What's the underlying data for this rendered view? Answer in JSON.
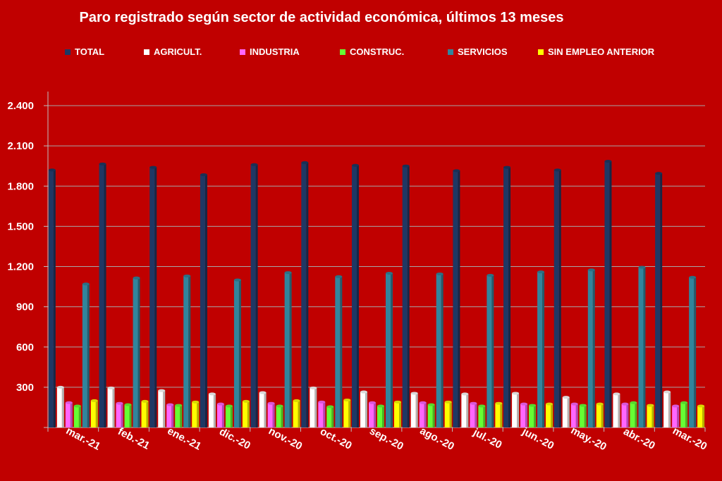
{
  "chart_data": {
    "type": "bar",
    "title": "Paro registrado según sector de actividad económica, últimos 13 meses",
    "xlabel": "",
    "ylabel": "",
    "ylim": [
      0,
      2400
    ],
    "yticks": [
      0,
      300,
      600,
      900,
      1200,
      1500,
      1800,
      2100,
      2400
    ],
    "ytick_labels": [
      "",
      "300",
      "600",
      "900",
      "1.200",
      "1.500",
      "1.800",
      "2.100",
      "2.400"
    ],
    "grid": true,
    "legend_position": "top",
    "categories": [
      "mar.-21",
      "feb.-21",
      "ene.-21",
      "dic.-20",
      "nov.-20",
      "oct.-20",
      "sep.-20",
      "ago.-20",
      "jul.-20",
      "jun.-20",
      "may.-20",
      "abr.-20",
      "mar.-20"
    ],
    "series": [
      {
        "name": "TOTAL",
        "color": "#1f3864",
        "values": [
          1920,
          1965,
          1940,
          1885,
          1960,
          1975,
          1955,
          1950,
          1915,
          1940,
          1920,
          1985,
          1895
        ]
      },
      {
        "name": "AGRICULT.",
        "color": "#ffffff",
        "values": [
          300,
          295,
          275,
          250,
          260,
          295,
          265,
          255,
          250,
          255,
          225,
          250,
          265
        ]
      },
      {
        "name": "INDUSTRIA",
        "color": "#ff66ff",
        "values": [
          185,
          180,
          170,
          175,
          180,
          190,
          185,
          185,
          180,
          175,
          175,
          175,
          160
        ]
      },
      {
        "name": "CONSTRUC.",
        "color": "#66ff33",
        "values": [
          160,
          170,
          165,
          160,
          160,
          155,
          160,
          170,
          160,
          165,
          165,
          185,
          185
        ]
      },
      {
        "name": "SERVICIOS",
        "color": "#31859c",
        "values": [
          1070,
          1115,
          1130,
          1100,
          1155,
          1125,
          1150,
          1145,
          1135,
          1160,
          1175,
          1195,
          1120
        ]
      },
      {
        "name": "SIN EMPLEO ANTERIOR",
        "color": "#ffff00",
        "values": [
          200,
          195,
          190,
          195,
          200,
          205,
          190,
          190,
          180,
          175,
          175,
          165,
          160
        ]
      }
    ]
  }
}
